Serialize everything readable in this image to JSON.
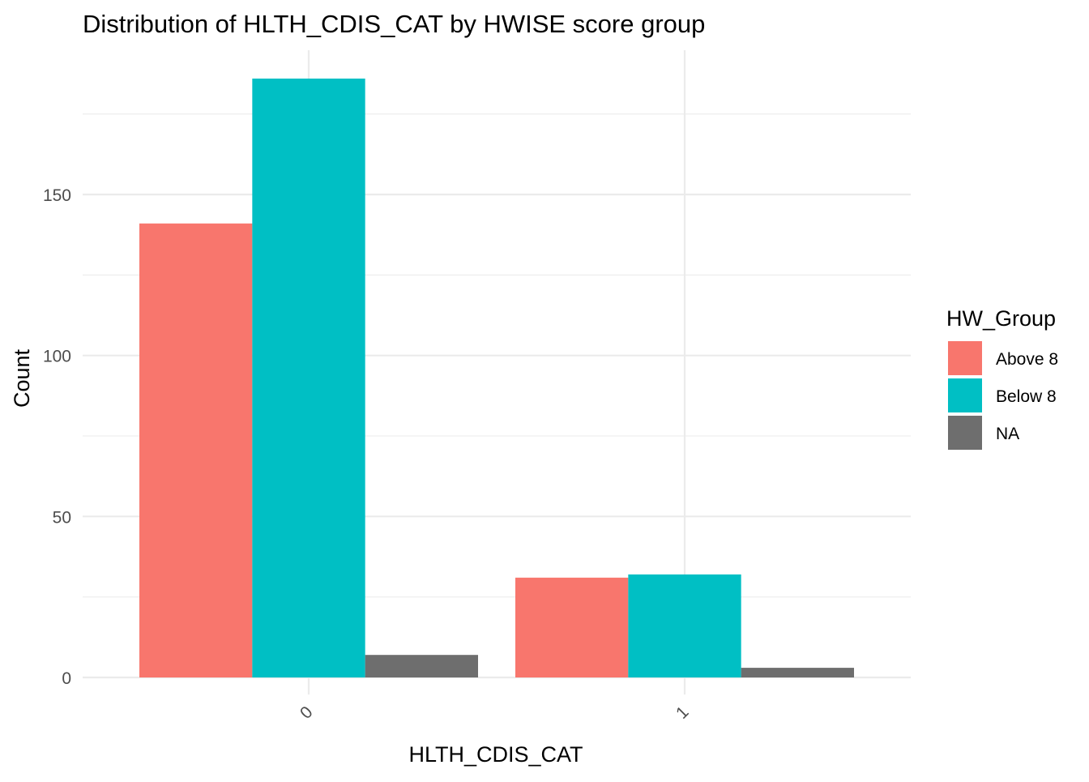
{
  "chart_data": {
    "type": "bar",
    "title": "Distribution of HLTH_CDIS_CAT by HWISE score group",
    "xlabel": "HLTH_CDIS_CAT",
    "ylabel": "Count",
    "categories": [
      "0",
      "1"
    ],
    "series": [
      {
        "name": "Above 8",
        "color": "#F8766D",
        "values": [
          141,
          31
        ]
      },
      {
        "name": "Below 8",
        "color": "#00BFC4",
        "values": [
          186,
          32
        ]
      },
      {
        "name": "NA",
        "color": "#6E6E6E",
        "values": [
          7,
          3
        ]
      }
    ],
    "ylim": [
      0,
      195
    ],
    "yticks": [
      0,
      50,
      100,
      150
    ],
    "yticks_minor": [
      25,
      75,
      125,
      175
    ],
    "legend": {
      "title": "HW_Group",
      "placement": "right"
    },
    "grid": true,
    "x_tick_rotation": "45deg"
  }
}
